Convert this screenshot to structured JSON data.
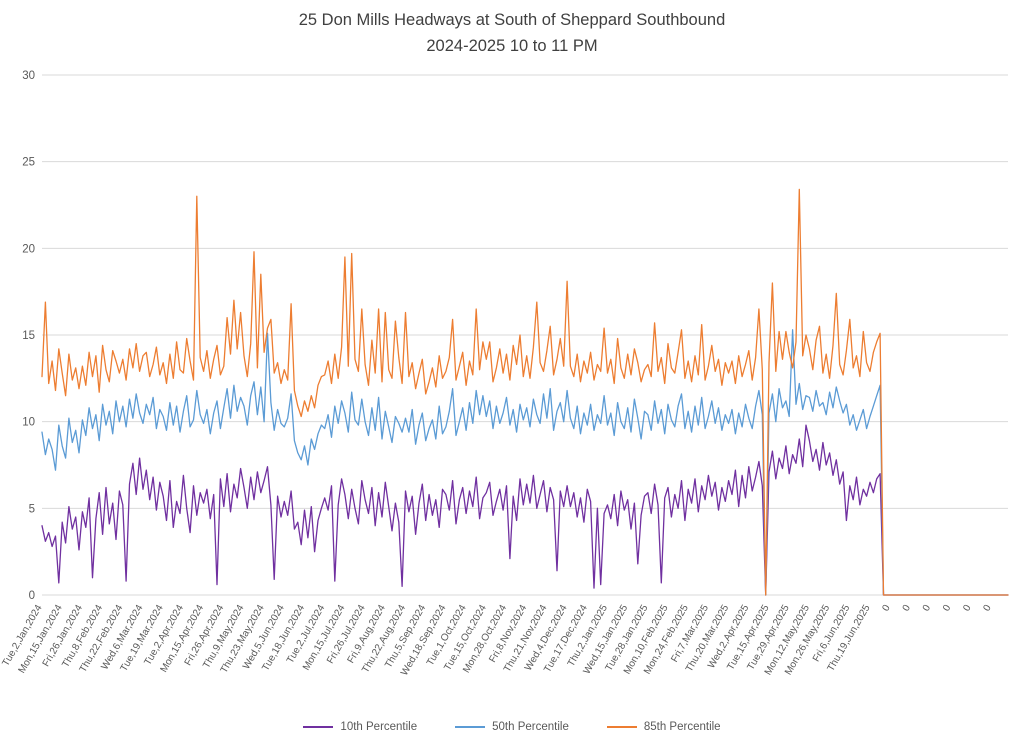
{
  "chart_data": {
    "type": "line",
    "title": "25 Don Mills Headways at South of Sheppard Southbound",
    "subtitle": "2024-2025 10 to 11 PM",
    "xlabel": "",
    "ylabel": "",
    "ylim": [
      0,
      30
    ],
    "y_step": 5,
    "grid": true,
    "legend_position": "bottom",
    "title_color": "#404040",
    "axis_label_color": "#595959",
    "grid_color": "#d9d9d9",
    "x_tick_every": 6,
    "x_tick_labels": [
      "Tue,2,Jan,2024",
      "Mon,15,Jan,2024",
      "Fri,26,Jan,2024",
      "Thu,8,Feb,2024",
      "Thu,22,Feb,2024",
      "Wed,6,Mar,2024",
      "Tue,19,Mar,2024",
      "Tue,2,Apr,2024",
      "Mon,15,Apr,2024",
      "Fri,26,Apr,2024",
      "Thu,9,May,2024",
      "Thu,23,May,2024",
      "Wed,5,Jun,2024",
      "Tue,18,Jun,2024",
      "Tue,2,Jul,2024",
      "Mon,15,Jul,2024",
      "Fri,26,Jul,2024",
      "Fri,9,Aug,2024",
      "Thu,22,Aug,2024",
      "Thu,5,Sep,2024",
      "Wed,18,Sep,2024",
      "Tue,1,Oct,2024",
      "Tue,15,Oct,2024",
      "Mon,28,Oct,2024",
      "Fri,8,Nov,2024",
      "Thu,21,Nov,2024",
      "Wed,4,Dec,2024",
      "Tue,17,Dec,2024",
      "Thu,2,Jan,2025",
      "Wed,15,Jan,2025",
      "Tue,28,Jan,2025",
      "Mon,10,Feb,2025",
      "Mon,24,Feb,2025",
      "Fri,7,Mar,2025",
      "Thu,20,Mar,2025",
      "Wed,2,Apr,2025",
      "Tue,15,Apr,2025",
      "Tue,29,Apr,2025",
      "Mon,12,May,2025",
      "Mon,26,May,2025",
      "Fri,6,Jun,2025",
      "Thu,19,Jun,2025",
      "0",
      "0",
      "0",
      "0",
      "0",
      "0"
    ],
    "series": [
      {
        "name": "10th Percentile",
        "color": "#7030A0",
        "values": [
          4.0,
          3.1,
          3.6,
          2.8,
          3.4,
          0.7,
          4.2,
          3.0,
          5.1,
          3.8,
          4.5,
          2.6,
          4.8,
          3.9,
          5.6,
          1.0,
          4.4,
          5.9,
          3.5,
          6.2,
          4.1,
          5.3,
          3.2,
          6.0,
          5.2,
          0.8,
          6.4,
          7.6,
          5.8,
          7.9,
          6.1,
          7.2,
          5.5,
          6.8,
          4.9,
          6.5,
          5.7,
          4.3,
          6.6,
          3.9,
          5.4,
          4.7,
          6.9,
          5.0,
          3.6,
          6.3,
          4.6,
          5.9,
          5.3,
          6.1,
          4.4,
          5.8,
          0.6,
          6.7,
          5.1,
          7.0,
          4.8,
          6.4,
          5.6,
          7.3,
          6.2,
          5.0,
          6.8,
          5.5,
          7.1,
          5.9,
          6.6,
          7.4,
          5.2,
          0.9,
          5.7,
          4.5,
          5.4,
          4.6,
          6.0,
          3.8,
          4.2,
          2.9,
          4.9,
          3.3,
          5.1,
          2.5,
          4.3,
          5.0,
          5.6,
          4.9,
          6.3,
          0.8,
          5.2,
          6.7,
          5.8,
          4.4,
          6.1,
          5.0,
          4.1,
          6.6,
          5.5,
          4.7,
          6.2,
          4.0,
          5.9,
          4.5,
          6.5,
          5.1,
          3.7,
          5.3,
          4.2,
          0.5,
          6.0,
          4.8,
          5.7,
          3.5,
          5.3,
          6.4,
          4.3,
          5.8,
          4.6,
          5.5,
          3.9,
          6.1,
          5.8,
          4.9,
          6.6,
          4.1,
          5.5,
          6.2,
          4.7,
          6.0,
          5.1,
          6.8,
          4.4,
          5.6,
          5.9,
          6.5,
          4.6,
          5.4,
          6.1,
          4.9,
          6.3,
          2.1,
          5.7,
          4.3,
          6.7,
          5.2,
          6.4,
          5.3,
          6.9,
          5.0,
          5.8,
          6.6,
          4.8,
          6.2,
          5.5,
          1.4,
          6.0,
          5.1,
          6.3,
          5.1,
          5.9,
          4.5,
          5.6,
          4.2,
          6.1,
          5.4,
          0.4,
          5.0,
          0.6,
          4.7,
          5.2,
          4.4,
          5.8,
          4.0,
          6.0,
          4.9,
          5.5,
          3.8,
          5.3,
          1.8,
          4.6,
          5.7,
          5.9,
          4.7,
          6.4,
          5.2,
          0.7,
          5.6,
          6.2,
          4.5,
          5.8,
          5.0,
          6.6,
          4.3,
          6.1,
          5.3,
          6.7,
          4.8,
          6.3,
          5.5,
          6.9,
          5.7,
          6.5,
          4.9,
          6.2,
          5.4,
          6.6,
          5.8,
          7.2,
          5.1,
          6.9,
          5.6,
          7.4,
          6.0,
          6.8,
          7.7,
          6.3,
          0,
          7.1,
          8.3,
          6.7,
          7.9,
          7.3,
          8.6,
          7.0,
          8.1,
          7.6,
          9.0,
          7.4,
          9.8,
          8.9,
          7.7,
          8.4,
          7.2,
          8.8,
          7.5,
          8.2,
          6.9,
          7.8,
          6.4,
          7.1,
          4.3,
          6.3,
          5.5,
          6.8,
          5.2,
          6.1,
          5.7,
          6.5,
          5.9,
          6.7,
          7.0,
          0,
          0,
          0,
          0,
          0,
          0,
          0,
          0,
          0,
          0,
          0,
          0,
          0,
          0,
          0,
          0,
          0,
          0,
          0,
          0,
          0,
          0,
          0,
          0,
          0,
          0,
          0,
          0,
          0,
          0,
          0,
          0,
          0,
          0,
          0,
          0,
          0,
          0
        ]
      },
      {
        "name": "50th Percentile",
        "color": "#5B9BD5",
        "values": [
          9.4,
          8.1,
          9.0,
          8.4,
          7.2,
          9.8,
          8.6,
          7.9,
          10.2,
          8.8,
          9.5,
          8.2,
          10.1,
          9.2,
          10.8,
          9.6,
          10.4,
          8.9,
          11.0,
          9.8,
          10.6,
          9.3,
          11.2,
          10.0,
          10.9,
          9.7,
          11.3,
          10.2,
          11.6,
          10.5,
          9.9,
          11.0,
          10.4,
          11.4,
          9.6,
          10.7,
          10.3,
          9.5,
          11.1,
          9.8,
          10.9,
          9.4,
          10.6,
          11.5,
          9.7,
          10.1,
          11.8,
          10.4,
          9.9,
          10.7,
          9.3,
          10.5,
          11.2,
          9.6,
          10.8,
          11.9,
          10.2,
          12.1,
          10.6,
          11.4,
          10.9,
          9.8,
          11.5,
          12.3,
          10.4,
          12.0,
          10.0,
          15.1,
          11.1,
          9.5,
          10.7,
          9.9,
          9.7,
          10.2,
          11.6,
          8.9,
          8.2,
          7.8,
          8.6,
          7.5,
          9.0,
          8.4,
          9.3,
          9.8,
          9.6,
          10.4,
          9.1,
          10.9,
          9.9,
          11.2,
          10.5,
          9.4,
          11.7,
          10.1,
          9.8,
          11.3,
          10.0,
          9.2,
          10.8,
          9.5,
          11.4,
          9.0,
          10.6,
          9.7,
          8.8,
          10.3,
          9.9,
          9.4,
          10.2,
          9.4,
          10.7,
          8.7,
          9.8,
          10.5,
          8.9,
          9.6,
          10.1,
          9.0,
          10.9,
          9.3,
          9.7,
          10.6,
          11.9,
          9.2,
          10.0,
          10.8,
          9.5,
          11.1,
          9.9,
          11.8,
          10.4,
          11.5,
          10.3,
          11.2,
          9.6,
          10.9,
          9.9,
          10.5,
          11.4,
          9.8,
          10.7,
          9.4,
          11.0,
          10.1,
          10.8,
          9.7,
          11.3,
          10.4,
          9.9,
          11.6,
          10.2,
          11.9,
          9.5,
          10.6,
          11.1,
          10.0,
          11.8,
          10.2,
          9.6,
          10.9,
          9.3,
          10.5,
          9.8,
          11.0,
          9.5,
          10.4,
          9.9,
          11.5,
          9.8,
          10.5,
          9.2,
          11.1,
          10.0,
          9.6,
          10.8,
          9.4,
          11.3,
          10.2,
          9.0,
          10.6,
          10.4,
          9.5,
          11.2,
          9.9,
          10.7,
          9.3,
          11.0,
          10.1,
          9.7,
          10.9,
          11.6,
          9.6,
          10.6,
          9.4,
          10.9,
          9.8,
          11.4,
          9.6,
          10.3,
          11.2,
          9.9,
          10.8,
          9.5,
          10.4,
          9.9,
          10.7,
          9.3,
          10.5,
          9.7,
          11.0,
          10.2,
          9.6,
          10.9,
          11.8,
          10.4,
          0,
          10.5,
          11.6,
          10.0,
          11.9,
          10.8,
          11.2,
          10.3,
          15.3,
          11.0,
          12.2,
          10.7,
          11.5,
          11.4,
          10.6,
          11.8,
          10.9,
          11.1,
          10.4,
          11.7,
          10.8,
          12.0,
          11.2,
          10.5,
          11.0,
          9.8,
          10.4,
          9.5,
          10.1,
          10.7,
          9.6,
          10.3,
          10.9,
          11.5,
          12.1,
          0,
          0,
          0,
          0,
          0,
          0,
          0,
          0,
          0,
          0,
          0,
          0,
          0,
          0,
          0,
          0,
          0,
          0,
          0,
          0,
          0,
          0,
          0,
          0,
          0,
          0,
          0,
          0,
          0,
          0,
          0,
          0,
          0,
          0,
          0,
          0,
          0,
          0
        ]
      },
      {
        "name": "85th Percentile",
        "color": "#ED7D31",
        "values": [
          12.6,
          16.9,
          12.2,
          13.5,
          11.8,
          14.2,
          12.8,
          11.5,
          13.9,
          12.4,
          13.1,
          11.9,
          13.2,
          12.1,
          14.0,
          12.6,
          13.8,
          11.7,
          14.4,
          13.0,
          12.3,
          14.1,
          13.5,
          12.8,
          13.6,
          12.4,
          14.2,
          13.1,
          14.5,
          12.9,
          13.8,
          14.0,
          12.6,
          13.3,
          14.3,
          12.7,
          13.4,
          12.2,
          13.9,
          12.5,
          14.6,
          13.0,
          12.8,
          14.8,
          13.5,
          12.4,
          23.0,
          13.7,
          12.9,
          14.1,
          12.5,
          13.6,
          14.4,
          12.7,
          13.2,
          16.0,
          13.9,
          17.0,
          14.2,
          16.3,
          13.8,
          12.6,
          14.5,
          19.8,
          13.1,
          18.5,
          14.0,
          15.4,
          15.9,
          12.8,
          13.4,
          12.2,
          13.0,
          12.4,
          16.8,
          11.8,
          10.9,
          10.3,
          11.2,
          10.6,
          11.5,
          10.8,
          12.1,
          12.6,
          12.7,
          13.5,
          12.2,
          13.9,
          12.5,
          14.3,
          19.5,
          13.2,
          19.7,
          13.6,
          12.9,
          16.5,
          13.3,
          12.1,
          14.7,
          12.8,
          16.5,
          12.3,
          16.3,
          13.0,
          12.5,
          15.8,
          13.7,
          12.2,
          16.3,
          12.6,
          13.4,
          11.9,
          12.8,
          13.6,
          11.6,
          12.3,
          13.1,
          12.0,
          13.8,
          12.5,
          12.9,
          13.7,
          15.9,
          12.4,
          13.2,
          14.0,
          12.1,
          13.5,
          12.7,
          16.5,
          13.0,
          14.6,
          13.6,
          14.6,
          12.3,
          13.1,
          14.2,
          12.8,
          13.9,
          12.4,
          14.4,
          13.3,
          15.0,
          12.6,
          13.8,
          12.5,
          14.3,
          16.9,
          13.4,
          12.9,
          14.1,
          15.5,
          12.7,
          13.6,
          14.8,
          13.2,
          18.1,
          13.2,
          12.6,
          13.9,
          12.3,
          13.5,
          12.8,
          14.0,
          12.4,
          13.3,
          12.9,
          15.4,
          12.8,
          13.6,
          12.2,
          14.8,
          13.1,
          12.5,
          13.9,
          12.7,
          14.2,
          13.4,
          12.3,
          13.0,
          13.3,
          12.6,
          15.7,
          12.9,
          13.7,
          12.2,
          14.5,
          13.1,
          12.8,
          14.0,
          15.3,
          12.5,
          13.5,
          12.3,
          13.8,
          12.7,
          15.6,
          12.4,
          13.2,
          14.4,
          12.9,
          13.6,
          12.1,
          13.4,
          12.8,
          13.5,
          12.2,
          13.8,
          12.6,
          13.3,
          14.1,
          12.4,
          13.7,
          16.5,
          13.0,
          0,
          13.4,
          18.0,
          12.9,
          15.2,
          13.6,
          15.2,
          14.0,
          13.1,
          14.6,
          23.4,
          13.8,
          15.0,
          14.2,
          13.0,
          14.7,
          15.5,
          12.8,
          13.9,
          12.5,
          14.4,
          17.4,
          13.3,
          12.7,
          14.1,
          15.9,
          13.1,
          13.8,
          12.6,
          15.2,
          13.4,
          12.9,
          14.0,
          14.6,
          15.1,
          0,
          0,
          0,
          0,
          0,
          0,
          0,
          0,
          0,
          0,
          0,
          0,
          0,
          0,
          0,
          0,
          0,
          0,
          0,
          0,
          0,
          0,
          0,
          0,
          0,
          0,
          0,
          0,
          0,
          0,
          0,
          0,
          0,
          0,
          0,
          0,
          0,
          0
        ]
      }
    ]
  }
}
